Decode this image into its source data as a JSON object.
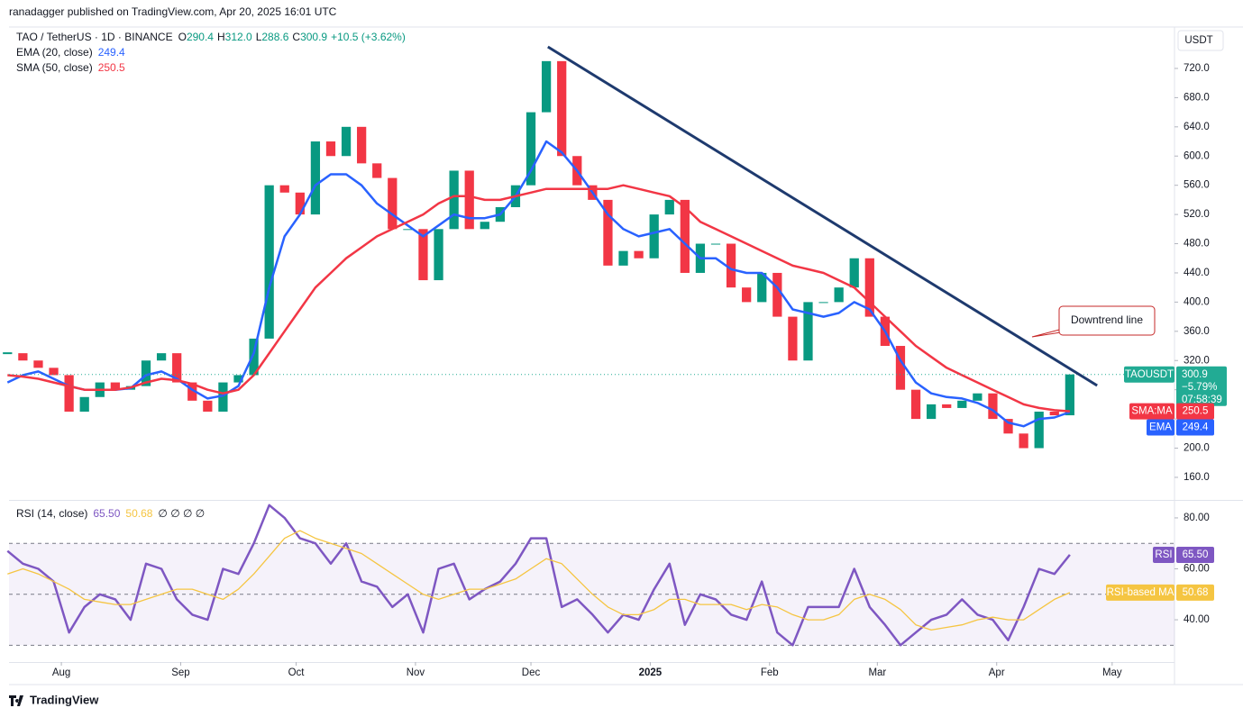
{
  "header": "ranadagger published on TradingView.com, Apr 20, 2025 16:01 UTC",
  "footer": "TradingView",
  "chart_data": {
    "type": "candlestick",
    "title": "TAO / TetherUS · 1D · BINANCE",
    "ohlc": [
      {
        "key": "O",
        "text": "290.4"
      },
      {
        "key": "H",
        "text": "312.0"
      },
      {
        "key": "L",
        "text": "288.6"
      },
      {
        "key": "C",
        "text": "300.9"
      }
    ],
    "change": "+10.5 (+3.62%)",
    "currency": "USDT",
    "x": [
      -14,
      -10,
      -6,
      -2,
      2,
      6,
      10,
      14,
      18,
      22,
      26,
      30,
      34,
      38,
      42,
      46,
      50,
      54,
      58,
      62,
      66,
      70,
      74,
      78,
      82,
      86,
      90,
      94,
      98,
      102,
      106,
      110,
      114,
      118,
      122,
      126,
      130,
      134,
      138,
      142,
      146,
      150,
      154,
      158,
      162,
      166,
      170,
      174,
      178,
      182,
      186,
      190,
      194,
      198,
      202,
      206,
      210,
      214,
      218,
      222,
      226,
      230,
      234,
      238,
      242,
      246,
      250,
      254,
      258,
      262
    ],
    "xlim": [
      -13.6,
      289.2
    ],
    "xticks": [
      {
        "value": 0,
        "label": "Aug"
      },
      {
        "value": 31,
        "label": "Sep"
      },
      {
        "value": 61,
        "label": "Oct"
      },
      {
        "value": 92,
        "label": "Nov"
      },
      {
        "value": 122,
        "label": "Dec"
      },
      {
        "value": 153,
        "label": "2025"
      },
      {
        "value": 184,
        "label": "Feb"
      },
      {
        "value": 212,
        "label": "Mar"
      },
      {
        "value": 243,
        "label": "Apr"
      },
      {
        "value": 273,
        "label": "May"
      }
    ],
    "ylim": [
      129.1,
      776.7
    ],
    "yticks": [
      {
        "value": 160,
        "label": "160.0"
      },
      {
        "value": 200,
        "label": "200.0"
      },
      {
        "value": 240,
        "label": "240.0"
      },
      {
        "value": 280,
        "label": "280.0"
      },
      {
        "value": 320,
        "label": "320.0"
      },
      {
        "value": 360,
        "label": "360.0"
      },
      {
        "value": 400,
        "label": "400.0"
      },
      {
        "value": 440,
        "label": "440.0"
      },
      {
        "value": 480,
        "label": "480.0"
      },
      {
        "value": 520,
        "label": "520.0"
      },
      {
        "value": 560,
        "label": "560.0"
      },
      {
        "value": 600,
        "label": "600.0"
      },
      {
        "value": 640,
        "label": "640.0"
      },
      {
        "value": 680,
        "label": "680.0"
      },
      {
        "value": 720,
        "label": "720.0"
      }
    ],
    "grid": false,
    "series": [
      {
        "name": "TAOUSDT",
        "color_up": "#089981",
        "color_down": "#f23645",
        "color": "#22ab94",
        "last": 300.9,
        "last_label": "300.9",
        "change_label": "−5.79%",
        "countdown": "07:58:39",
        "values": [
          330,
          320,
          310,
          300,
          250,
          270,
          290,
          280,
          285,
          320,
          330,
          290,
          265,
          250,
          290,
          300,
          350,
          560,
          550,
          520,
          620,
          600,
          640,
          590,
          570,
          500,
          500,
          430,
          500,
          580,
          500,
          510,
          530,
          560,
          660,
          730,
          600,
          560,
          540,
          450,
          470,
          460,
          520,
          540,
          440,
          480,
          480,
          420,
          400,
          440,
          380,
          320,
          400,
          400,
          420,
          460,
          380,
          340,
          280,
          240,
          260,
          255,
          265,
          275,
          240,
          220,
          200,
          250,
          245,
          300.9
        ]
      },
      {
        "name": "EMA (20, close)",
        "short": "EMA",
        "color": "#2962ff",
        "last": 249.4,
        "last_label": "249.4",
        "values": [
          290,
          300,
          305,
          295,
          285,
          280,
          280,
          280,
          282,
          300,
          305,
          295,
          280,
          268,
          272,
          285,
          330,
          420,
          490,
          520,
          560,
          575,
          575,
          560,
          535,
          520,
          505,
          490,
          505,
          520,
          515,
          515,
          520,
          545,
          580,
          620,
          605,
          580,
          550,
          520,
          500,
          490,
          495,
          500,
          480,
          460,
          460,
          445,
          440,
          440,
          420,
          390,
          385,
          380,
          385,
          400,
          390,
          360,
          320,
          290,
          275,
          270,
          268,
          262,
          252,
          235,
          230,
          240,
          242,
          249.4
        ]
      },
      {
        "name": "SMA (50, close)",
        "short": "SMA:MA",
        "color": "#f23645",
        "last": 250.5,
        "last_label": "250.5",
        "values": [
          300,
          298,
          295,
          290,
          285,
          280,
          280,
          280,
          283,
          290,
          295,
          293,
          288,
          280,
          275,
          280,
          300,
          330,
          360,
          390,
          420,
          440,
          460,
          475,
          490,
          500,
          510,
          520,
          535,
          545,
          545,
          540,
          540,
          545,
          550,
          555,
          555,
          555,
          555,
          555,
          560,
          555,
          550,
          545,
          530,
          510,
          500,
          490,
          480,
          470,
          460,
          450,
          445,
          440,
          430,
          420,
          400,
          380,
          360,
          340,
          325,
          310,
          300,
          290,
          280,
          270,
          260,
          255,
          252,
          250.5
        ]
      }
    ],
    "trendline": {
      "x": [
        126.4,
        269.1
      ],
      "y": [
        749.6,
        285.8
      ],
      "color": "#1e3a6e",
      "label": "Downtrend line"
    },
    "rsi": {
      "title": "RSI (14, close)",
      "extra": "∅ ∅ ∅ ∅",
      "ylim": [
        23.4,
        86.7
      ],
      "yticks": [
        {
          "value": 40,
          "label": "40.00"
        },
        {
          "value": 60,
          "label": "60.00"
        },
        {
          "value": 80,
          "label": "80.00"
        }
      ],
      "levels": [
        70,
        50,
        30
      ],
      "series": [
        {
          "name": "RSI",
          "color": "#7e57c2",
          "last": 65.5,
          "last_label": "65.50",
          "values": [
            67,
            62,
            60,
            55,
            35,
            45,
            50,
            48,
            40,
            62,
            60,
            48,
            42,
            40,
            60,
            58,
            70,
            85,
            80,
            72,
            70,
            62,
            70,
            55,
            53,
            45,
            50,
            35,
            60,
            62,
            48,
            52,
            55,
            62,
            72,
            72,
            45,
            48,
            42,
            35,
            42,
            40,
            52,
            62,
            38,
            50,
            48,
            42,
            40,
            55,
            35,
            30,
            45,
            45,
            45,
            60,
            45,
            38,
            30,
            35,
            40,
            42,
            48,
            42,
            40,
            32,
            45,
            60,
            58,
            65.5
          ]
        },
        {
          "name": "RSI-based MA",
          "color": "#f5c542",
          "last": 50.68,
          "last_label": "50.68",
          "values": [
            58,
            60,
            58,
            55,
            52,
            48,
            47,
            46,
            46,
            48,
            50,
            52,
            52,
            50,
            48,
            52,
            58,
            65,
            72,
            75,
            72,
            70,
            68,
            66,
            62,
            58,
            54,
            50,
            48,
            50,
            52,
            52,
            54,
            56,
            60,
            64,
            62,
            56,
            50,
            45,
            42,
            42,
            44,
            48,
            48,
            46,
            46,
            46,
            44,
            46,
            45,
            42,
            40,
            40,
            42,
            48,
            50,
            48,
            44,
            38,
            36,
            37,
            38,
            40,
            41,
            40,
            40,
            44,
            48,
            50.68
          ]
        }
      ]
    }
  }
}
